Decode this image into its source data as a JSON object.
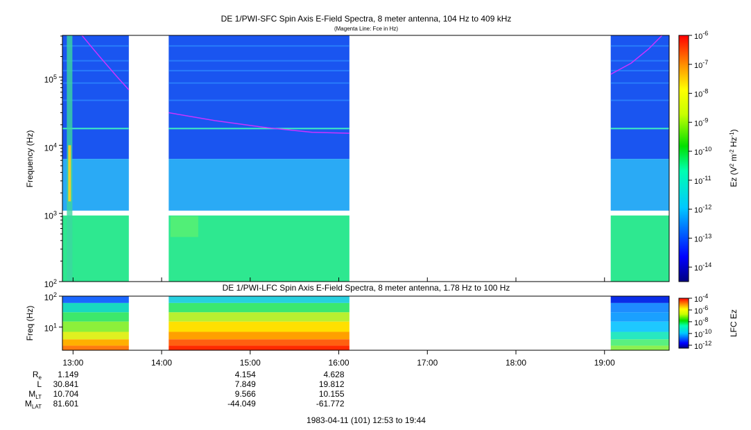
{
  "title_top": "DE 1/PWI-SFC  Spin Axis E-Field Spectra, 8 meter antenna, 104 Hz to 409 kHz",
  "subtitle_top": "(Magenta Line: Fce in Hz)",
  "title_bottom": "DE 1/PWI-LFC  Spin Axis E-Field Spectra, 8 meter antenna, 1.78 Hz to 100 Hz",
  "footer": "1983-04-11 (101) 12:53 to 19:44",
  "colors": {
    "fce_line": "#cc33ff",
    "frame": "#000000"
  },
  "chart_data": [
    {
      "type": "heatmap",
      "name": "SFC",
      "ylabel": "Frequency (Hz)",
      "xlim_hours": [
        12.88,
        19.73
      ],
      "ylim_hz": [
        100,
        409000
      ],
      "y_scale": "log",
      "y_ticks": [
        {
          "value": 100,
          "base": "10",
          "exp": "2"
        },
        {
          "value": 1000,
          "base": "10",
          "exp": "3"
        },
        {
          "value": 10000,
          "base": "10",
          "exp": "4"
        },
        {
          "value": 100000,
          "base": "10",
          "exp": "5"
        }
      ],
      "data_intervals_hours": [
        [
          12.88,
          13.63
        ],
        [
          14.08,
          16.12
        ],
        [
          19.07,
          19.73
        ]
      ],
      "fce_segments": [
        {
          "points": [
            [
              13.1,
              409000
            ],
            [
              13.3,
              200000
            ],
            [
              13.5,
              100000
            ],
            [
              13.63,
              65000
            ]
          ]
        },
        {
          "points": [
            [
              14.08,
              30000
            ],
            [
              14.6,
              23000
            ],
            [
              15.2,
              18000
            ],
            [
              15.7,
              15500
            ],
            [
              16.12,
              15000
            ]
          ]
        },
        {
          "points": [
            [
              19.07,
              110000
            ],
            [
              19.3,
              160000
            ],
            [
              19.5,
              260000
            ],
            [
              19.65,
              409000
            ]
          ]
        }
      ],
      "colorbar": {
        "label_base": "Ez (V",
        "label_sup1": "2",
        "label_mid": " m",
        "label_sup2": "-2",
        "label_mid2": " Hz",
        "label_sup3": "-1",
        "label_end": ")",
        "ticks": [
          {
            "base": "10",
            "exp": "-6"
          },
          {
            "base": "10",
            "exp": "-7"
          },
          {
            "base": "10",
            "exp": "-8"
          },
          {
            "base": "10",
            "exp": "-9"
          },
          {
            "base": "10",
            "exp": "-10"
          },
          {
            "base": "10",
            "exp": "-11"
          },
          {
            "base": "10",
            "exp": "-12"
          },
          {
            "base": "10",
            "exp": "-13"
          },
          {
            "base": "10",
            "exp": "-14"
          }
        ],
        "range_log": [
          -14.5,
          -6
        ]
      }
    },
    {
      "type": "heatmap",
      "name": "LFC",
      "ylabel": "Freq (Hz)",
      "ylim_hz": [
        1.78,
        100
      ],
      "y_scale": "log",
      "y_ticks": [
        {
          "value": 10,
          "base": "10",
          "exp": "1"
        },
        {
          "value": 100,
          "base": "10",
          "exp": "2"
        }
      ],
      "data_intervals_hours": [
        [
          12.88,
          13.63
        ],
        [
          14.08,
          16.12
        ],
        [
          19.07,
          19.73
        ]
      ],
      "colorbar": {
        "label": "LFC Ez",
        "ticks": [
          {
            "base": "10",
            "exp": "-4"
          },
          {
            "base": "10",
            "exp": "-6"
          },
          {
            "base": "10",
            "exp": "-8"
          },
          {
            "base": "10",
            "exp": "-10"
          },
          {
            "base": "10",
            "exp": "-12"
          }
        ],
        "range_log": [
          -12.5,
          -4
        ]
      }
    }
  ],
  "x_ticks": [
    {
      "hour": 13,
      "label": "13:00"
    },
    {
      "hour": 14,
      "label": "14:00"
    },
    {
      "hour": 15,
      "label": "15:00"
    },
    {
      "hour": 16,
      "label": "16:00"
    },
    {
      "hour": 17,
      "label": "17:00"
    },
    {
      "hour": 18,
      "label": "18:00"
    },
    {
      "hour": 19,
      "label": "19:00"
    }
  ],
  "ephemeris": {
    "rows": [
      {
        "label": "R",
        "sub": "e",
        "values": [
          {
            "hour": 13,
            "text": "1.149"
          },
          {
            "hour": 15,
            "text": "4.154"
          },
          {
            "hour": 16,
            "text": "4.628"
          }
        ]
      },
      {
        "label": "L",
        "sub": "",
        "values": [
          {
            "hour": 13,
            "text": "30.841"
          },
          {
            "hour": 15,
            "text": "7.849"
          },
          {
            "hour": 16,
            "text": "19.812"
          }
        ]
      },
      {
        "label": "M",
        "sub": "LT",
        "values": [
          {
            "hour": 13,
            "text": "10.704"
          },
          {
            "hour": 15,
            "text": "9.566"
          },
          {
            "hour": 16,
            "text": "10.155"
          }
        ]
      },
      {
        "label": "M",
        "sub": "LAT",
        "values": [
          {
            "hour": 13,
            "text": "81.601"
          },
          {
            "hour": 15,
            "text": "-44.049"
          },
          {
            "hour": 16,
            "text": "-61.772"
          }
        ]
      }
    ]
  }
}
